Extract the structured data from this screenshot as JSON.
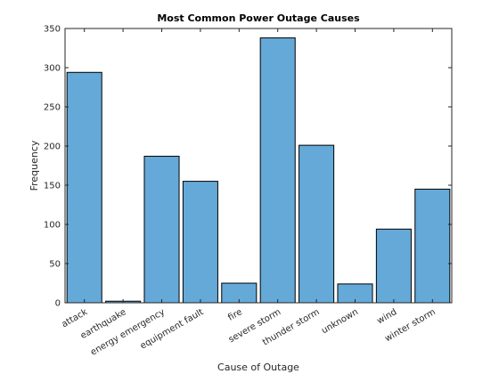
{
  "chart_data": {
    "type": "bar",
    "title": "Most Common Power Outage Causes",
    "xlabel": "Cause of Outage",
    "ylabel": "Frequency",
    "categories": [
      "attack",
      "earthquake",
      "energy emergency",
      "equipment fault",
      "fire",
      "severe storm",
      "thunder storm",
      "unknown",
      "wind",
      "winter storm"
    ],
    "values": [
      294,
      2,
      187,
      155,
      25,
      338,
      201,
      24,
      94,
      145
    ],
    "ylim": [
      0,
      350
    ],
    "yticks": [
      0,
      50,
      100,
      150,
      200,
      250,
      300,
      350
    ],
    "bar_color": "#65a9d8",
    "grid": false,
    "legend": "none"
  }
}
